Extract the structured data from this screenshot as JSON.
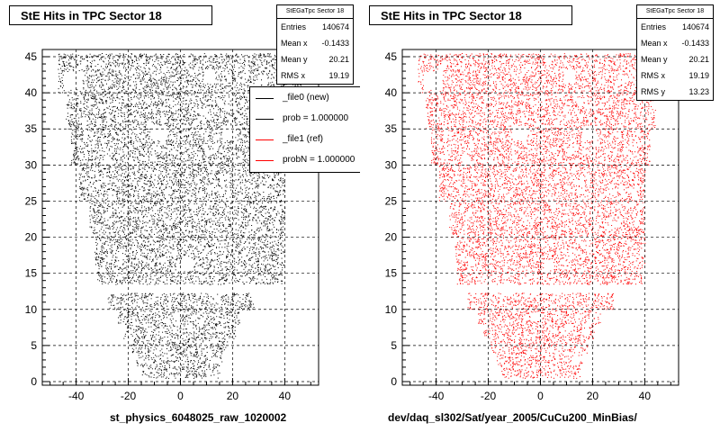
{
  "chart_data": [
    {
      "type": "scatter",
      "title": "StE Hits in TPC Sector 18",
      "xlabel": "st_physics_6048025_raw_1020002",
      "ylabel": "",
      "xlim": [
        -53,
        53
      ],
      "ylim": [
        -0.5,
        46
      ],
      "xticks": [
        "-40",
        "-20",
        "0",
        "20",
        "40"
      ],
      "yticks": [
        "0",
        "5",
        "10",
        "15",
        "20",
        "25",
        "30",
        "35",
        "40",
        "45"
      ],
      "grid": true,
      "marker_color": "#000000",
      "series": [
        {
          "name": "_file0 (new)",
          "color": "#000000"
        }
      ],
      "stats": {
        "title": "StEGaTpc Sector 18",
        "rows": [
          {
            "label": "Entries",
            "value": "140674"
          },
          {
            "label": "Mean x",
            "value": "-0.1433"
          },
          {
            "label": "Mean y",
            "value": "20.21"
          },
          {
            "label": "RMS x",
            "value": "19.19"
          }
        ]
      },
      "legend": {
        "position": "top-right",
        "entries": [
          {
            "label": "_file0 (new)",
            "color": "#000000"
          },
          {
            "label": "prob = 1.000000",
            "color": "#000000"
          },
          {
            "label": "_file1 (ref)",
            "color": "#ff0000"
          },
          {
            "label": "probN = 1.000000",
            "color": "#ff0000"
          }
        ]
      },
      "region": {
        "rows": [
          {
            "y": [
              0.5,
              2
            ],
            "x": [
              -15,
              15
            ]
          },
          {
            "y": [
              2,
              4
            ],
            "x": [
              -17,
              16
            ]
          },
          {
            "y": [
              4,
              6
            ],
            "x": [
              -19,
              18
            ]
          },
          {
            "y": [
              6,
              8
            ],
            "x": [
              -22,
              21
            ]
          },
          {
            "y": [
              8,
              10
            ],
            "x": [
              -24,
              23
            ]
          },
          {
            "y": [
              10,
              12.3
            ],
            "x": [
              -28,
              28
            ]
          },
          {
            "y": [
              13.5,
              16
            ],
            "x": [
              -32,
              39
            ]
          },
          {
            "y": [
              16,
              20
            ],
            "x": [
              -33,
              40
            ]
          },
          {
            "y": [
              20,
              25
            ],
            "x": [
              -35,
              40
            ]
          },
          {
            "y": [
              25,
              30
            ],
            "x": [
              -39,
              40
            ]
          },
          {
            "y": [
              30,
              35
            ],
            "x": [
              -42,
              42
            ]
          },
          {
            "y": [
              35,
              40
            ],
            "x": [
              -44,
              44
            ]
          },
          {
            "y": [
              40,
              45.5
            ],
            "x": [
              -47,
              47
            ]
          }
        ],
        "holes": [
          {
            "x": [
              -45,
              -38
            ],
            "y": [
              40.5,
              43
            ]
          },
          {
            "x": [
              -11,
              -5
            ],
            "y": [
              33.5,
              35.5
            ]
          },
          {
            "x": [
              16,
              21
            ],
            "y": [
              33.5,
              35.5
            ]
          },
          {
            "x": [
              9,
              13
            ],
            "y": [
              41.5,
              43
            ]
          },
          {
            "x": [
              1,
              5
            ],
            "y": [
              15.5,
              17
            ]
          },
          {
            "x": [
              12,
              15
            ],
            "y": [
              2.5,
              3.5
            ]
          },
          {
            "x": [
              -3,
              0
            ],
            "y": [
              8.5,
              9.5
            ]
          }
        ]
      }
    },
    {
      "type": "scatter",
      "title": "StE Hits in TPC Sector 18",
      "xlabel": "dev/daq_sl302/Sat/year_2005/CuCu200_MinBias/",
      "ylabel": "",
      "xlim": [
        -53,
        53
      ],
      "ylim": [
        -0.5,
        46
      ],
      "xticks": [
        "-40",
        "-20",
        "0",
        "20",
        "40"
      ],
      "yticks": [
        "0",
        "5",
        "10",
        "15",
        "20",
        "25",
        "30",
        "35",
        "40",
        "45"
      ],
      "grid": true,
      "marker_color": "#ff0000",
      "series": [
        {
          "name": "_file1 (ref)",
          "color": "#ff0000"
        }
      ],
      "stats": {
        "title": "StEGaTpc Sector 18",
        "rows": [
          {
            "label": "Entries",
            "value": "140674"
          },
          {
            "label": "Mean x",
            "value": "-0.1433"
          },
          {
            "label": "Mean y",
            "value": "20.21"
          },
          {
            "label": "RMS x",
            "value": "19.19"
          },
          {
            "label": "RMS y",
            "value": "13.23"
          }
        ]
      },
      "region": {
        "rows": [
          {
            "y": [
              0.5,
              2
            ],
            "x": [
              -15,
              15
            ]
          },
          {
            "y": [
              2,
              4
            ],
            "x": [
              -17,
              16
            ]
          },
          {
            "y": [
              4,
              6
            ],
            "x": [
              -19,
              18
            ]
          },
          {
            "y": [
              6,
              8
            ],
            "x": [
              -22,
              21
            ]
          },
          {
            "y": [
              8,
              10
            ],
            "x": [
              -24,
              23
            ]
          },
          {
            "y": [
              10,
              12.3
            ],
            "x": [
              -28,
              28
            ]
          },
          {
            "y": [
              13.5,
              16
            ],
            "x": [
              -32,
              39
            ]
          },
          {
            "y": [
              16,
              20
            ],
            "x": [
              -33,
              40
            ]
          },
          {
            "y": [
              20,
              25
            ],
            "x": [
              -35,
              40
            ]
          },
          {
            "y": [
              25,
              30
            ],
            "x": [
              -39,
              40
            ]
          },
          {
            "y": [
              30,
              35
            ],
            "x": [
              -42,
              42
            ]
          },
          {
            "y": [
              35,
              40
            ],
            "x": [
              -44,
              44
            ]
          },
          {
            "y": [
              40,
              45.5
            ],
            "x": [
              -47,
              47
            ]
          }
        ],
        "holes": [
          {
            "x": [
              -45,
              -38
            ],
            "y": [
              40.5,
              43
            ]
          },
          {
            "x": [
              -11,
              -5
            ],
            "y": [
              33.5,
              35.5
            ]
          },
          {
            "x": [
              16,
              21
            ],
            "y": [
              33.5,
              35.5
            ]
          },
          {
            "x": [
              9,
              13
            ],
            "y": [
              41.5,
              43
            ]
          },
          {
            "x": [
              1,
              5
            ],
            "y": [
              15.5,
              17
            ]
          },
          {
            "x": [
              12,
              15
            ],
            "y": [
              2.5,
              3.5
            ]
          },
          {
            "x": [
              -3,
              0
            ],
            "y": [
              8.5,
              9.5
            ]
          }
        ]
      }
    }
  ]
}
